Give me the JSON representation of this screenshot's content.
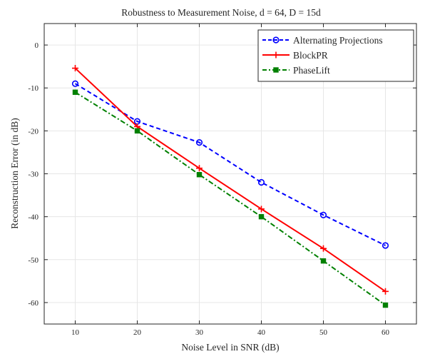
{
  "chart_data": {
    "type": "line",
    "title": "Robustness to Measurement Noise, d = 64, D = 15d",
    "xlabel": "Noise Level in SNR (dB)",
    "ylabel": "Reconstruction Error (in dB)",
    "xlim": [
      5,
      65
    ],
    "ylim": [
      -65,
      5
    ],
    "x_ticks": [
      10,
      20,
      30,
      40,
      50,
      60
    ],
    "y_ticks": [
      0,
      -10,
      -20,
      -30,
      -40,
      -50,
      -60
    ],
    "grid": true,
    "legend_position": "top-right",
    "x": [
      10,
      20,
      30,
      40,
      50,
      60
    ],
    "series": [
      {
        "name": "Alternating Projections",
        "values": [
          -9.0,
          -17.8,
          -22.7,
          -32.0,
          -39.6,
          -46.7
        ],
        "color": "#0000ff",
        "line": "dashed",
        "marker": "circle"
      },
      {
        "name": "BlockPR",
        "values": [
          -5.4,
          -19.0,
          -28.7,
          -38.2,
          -47.4,
          -57.4
        ],
        "color": "#ff0000",
        "line": "solid",
        "marker": "plus"
      },
      {
        "name": "PhaseLift",
        "values": [
          -11.0,
          -20.0,
          -30.2,
          -40.0,
          -50.3,
          -60.6
        ],
        "color": "#008000",
        "line": "dashdot",
        "marker": "square"
      }
    ]
  }
}
